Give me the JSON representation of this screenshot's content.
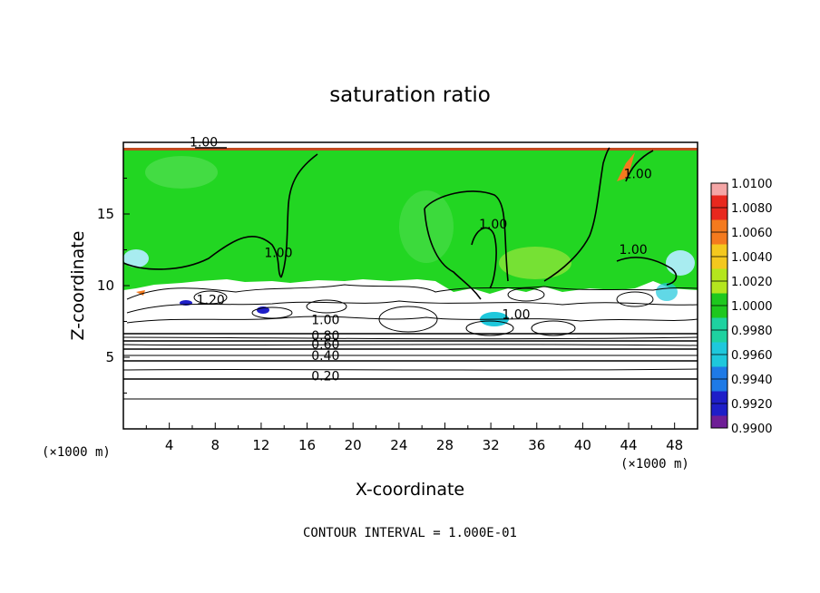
{
  "chart_data": {
    "type": "heatmap",
    "title": "saturation ratio",
    "xlabel": "X-coordinate",
    "ylabel": "Z-coordinate",
    "x_unit_label": "(×1000 m)",
    "y_unit_label": "(×1000 m)",
    "xlim": [
      0,
      50
    ],
    "ylim": [
      0,
      20
    ],
    "x_ticks": [
      4,
      8,
      12,
      16,
      20,
      24,
      28,
      32,
      36,
      40,
      44,
      48
    ],
    "y_ticks": [
      5,
      10,
      15
    ],
    "footer": "CONTOUR INTERVAL = 1.000E-01",
    "colorbar": {
      "ticks": [
        "1.0100",
        "1.0080",
        "1.0060",
        "1.0040",
        "1.0020",
        "1.0000",
        "0.9980",
        "0.9960",
        "0.9940",
        "0.9920",
        "0.9900"
      ],
      "colors": [
        "#f4a6a6",
        "#e8281e",
        "#f47a1e",
        "#f4c81e",
        "#b4e61e",
        "#1ec81e",
        "#1ed2a0",
        "#1ec8dc",
        "#1e7ae6",
        "#1e1ec8",
        "#6e1e96"
      ]
    },
    "field_colors": {
      "supersat_region": "#22d622",
      "subsat_region": "#ffffff",
      "edge": "#e8281e"
    },
    "contour_labels": [
      {
        "text": "1.00",
        "x": 7.0,
        "z": 19.7
      },
      {
        "text": "1.00",
        "x": 13.5,
        "z": 12.0
      },
      {
        "text": "1.00",
        "x": 32.2,
        "z": 14.0
      },
      {
        "text": "1.00",
        "x": 44.8,
        "z": 17.5
      },
      {
        "text": "1.00",
        "x": 44.4,
        "z": 12.2
      },
      {
        "text": "1.20",
        "x": 7.6,
        "z": 8.7
      },
      {
        "text": "1.00",
        "x": 17.6,
        "z": 7.3
      },
      {
        "text": "1.00",
        "x": 34.2,
        "z": 7.7
      },
      {
        "text": "0.80",
        "x": 17.6,
        "z": 6.2
      },
      {
        "text": "0.60",
        "x": 17.6,
        "z": 5.6
      },
      {
        "text": "0.40",
        "x": 17.6,
        "z": 4.8
      },
      {
        "text": "0.20",
        "x": 17.6,
        "z": 3.4
      }
    ],
    "contour_levels_z": [
      2.0,
      3.4,
      4.2,
      4.8,
      5.1,
      5.4,
      5.7,
      6.0,
      6.2,
      6.4,
      6.6
    ]
  }
}
